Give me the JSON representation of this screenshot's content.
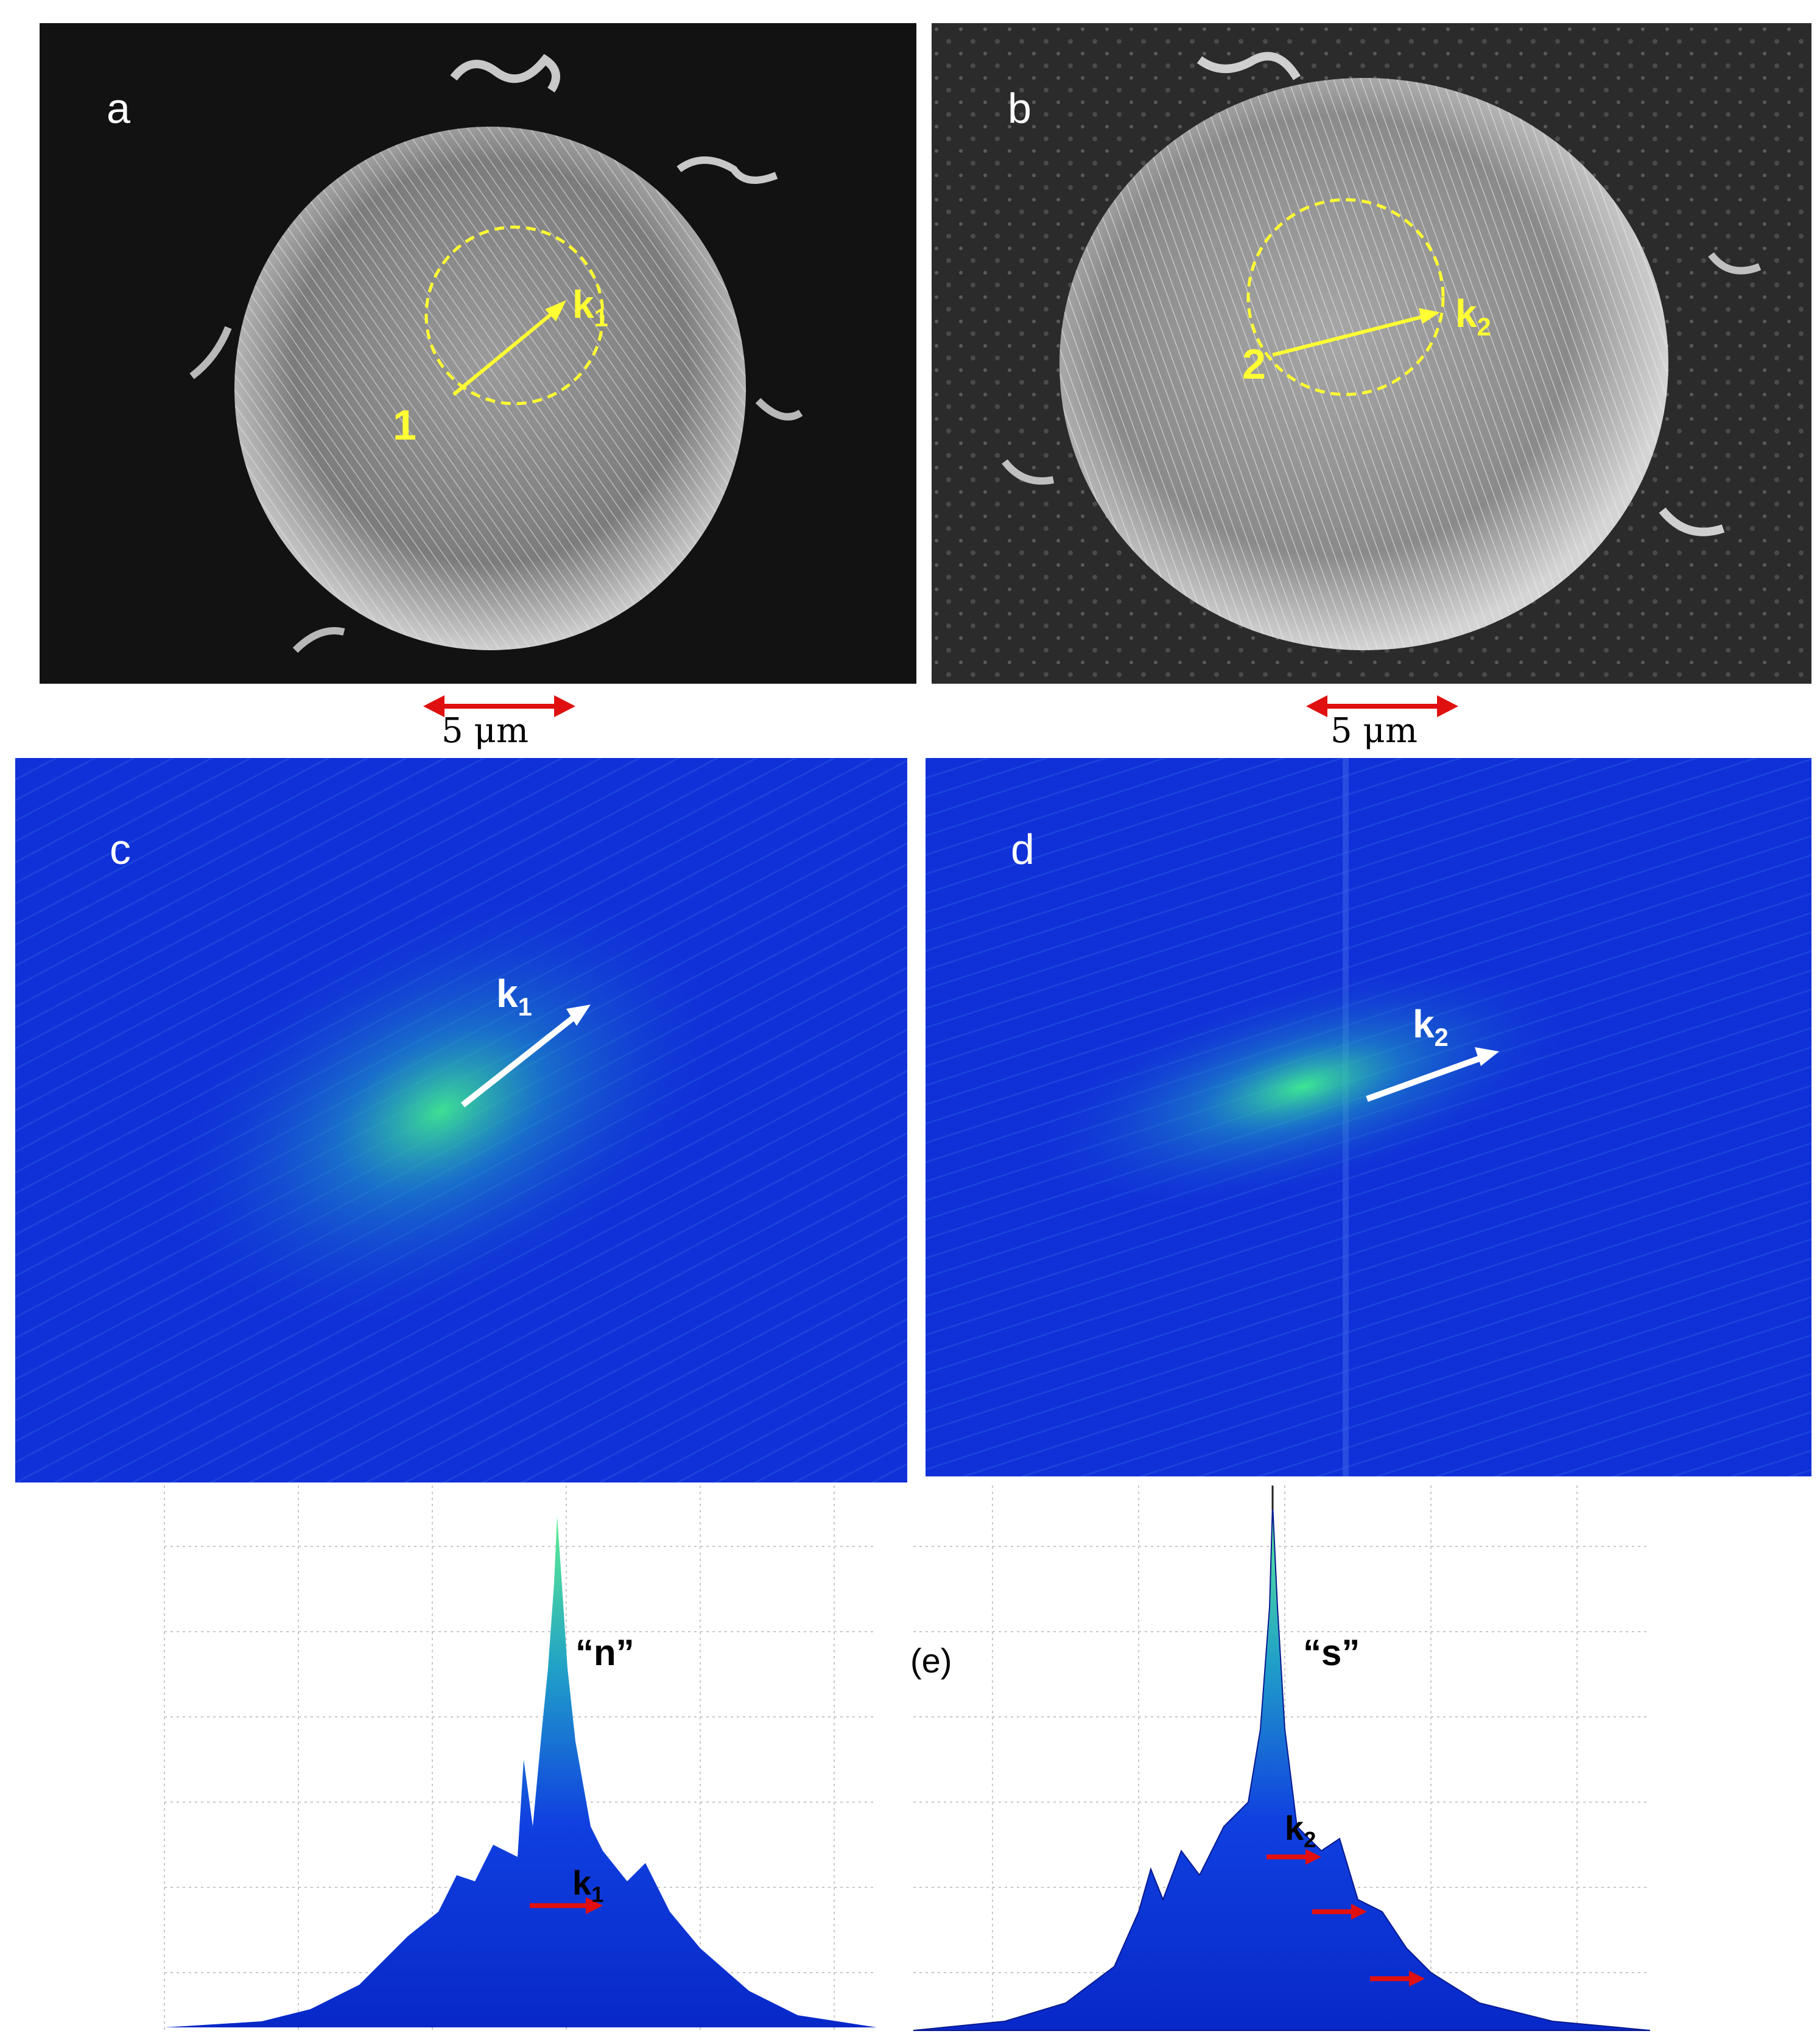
{
  "panels": {
    "a": {
      "label": "a",
      "point": "1",
      "vector": "k",
      "sub": "1"
    },
    "b": {
      "label": "b",
      "point": "2",
      "vector": "k",
      "sub": "2"
    },
    "c": {
      "label": "c",
      "vector": "k",
      "sub": "1"
    },
    "d": {
      "label": "d",
      "vector": "k",
      "sub": "2"
    }
  },
  "scalebars": {
    "a": "5 μm",
    "b": "5 μm"
  },
  "panel_e": {
    "label": "(e)",
    "left_title": "“n”",
    "right_title": "“s”",
    "left_vector": "k",
    "left_sub": "1",
    "right_vector": "k",
    "right_sub": "2"
  },
  "colors": {
    "sem_bg_a": "#121212",
    "sem_bg_b": "#2b2b2b",
    "fft_blue": "#1030d8",
    "fft_glow": "#30d890",
    "highlight": "#ffff33",
    "arrow_red": "#e01010"
  }
}
